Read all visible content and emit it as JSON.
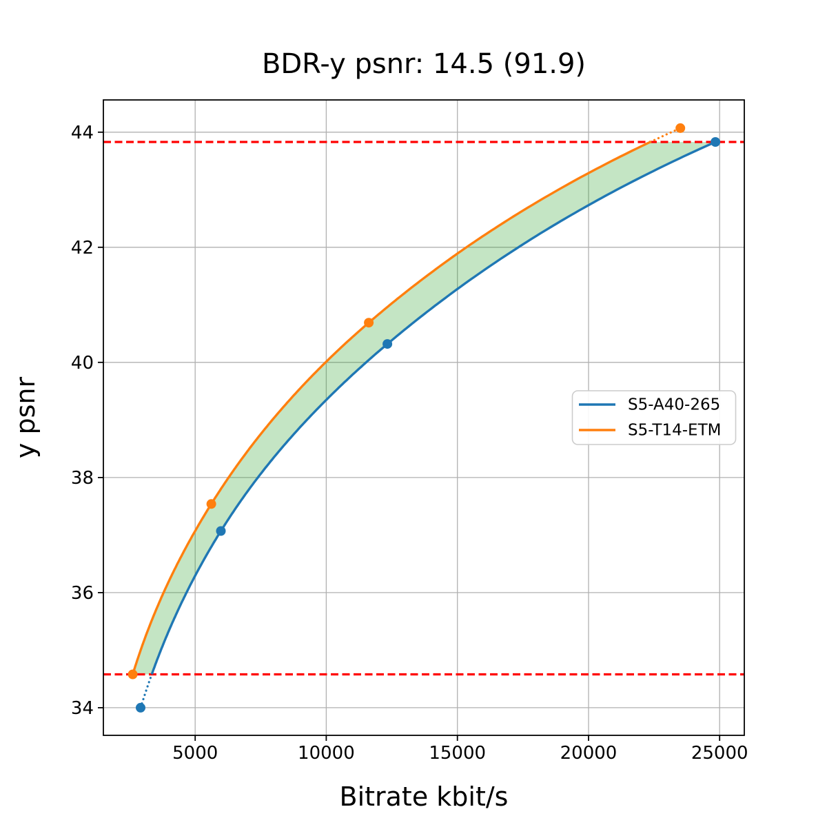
{
  "chart_data": {
    "type": "line",
    "title": "BDR-y psnr: 14.5 (91.9)",
    "xlabel": "Bitrate kbit/s",
    "ylabel": "y psnr",
    "xlim": [
      1500,
      25940
    ],
    "ylim": [
      33.52,
      44.56
    ],
    "x_ticks": [
      "5000",
      "10000",
      "15000",
      "20000",
      "25000"
    ],
    "x_tick_values": [
      5000,
      10000,
      15000,
      20000,
      25000
    ],
    "y_ticks": [
      "34",
      "36",
      "38",
      "40",
      "42",
      "44"
    ],
    "y_tick_values": [
      34,
      36,
      38,
      40,
      42,
      44
    ],
    "grid": true,
    "grid_color": "#b0b0b0",
    "background_color": "#ffffff",
    "legend_position": "center-right",
    "series": [
      {
        "name": "S5-A40-265",
        "color": "#1f77b4",
        "marker": "circle",
        "points": [
          [
            2920,
            34.0
          ],
          [
            5980,
            37.07
          ],
          [
            12330,
            40.32
          ],
          [
            24840,
            43.83
          ]
        ]
      },
      {
        "name": "S5-T14-ETM",
        "color": "#ff7f0e",
        "marker": "circle",
        "points": [
          [
            2620,
            34.58
          ],
          [
            5615,
            37.54
          ],
          [
            11620,
            40.69
          ],
          [
            23500,
            44.07
          ]
        ]
      }
    ],
    "bd_integration": {
      "lower_bound_psnr": 34.58,
      "upper_bound_psnr": 43.83,
      "bound_line_color": "#ff0000",
      "bound_line_style": "dashed",
      "fill_color": "#2ca02c",
      "fill_opacity": 0.28,
      "note_curve_style": "solid inside overlap interval, dotted outside"
    }
  }
}
